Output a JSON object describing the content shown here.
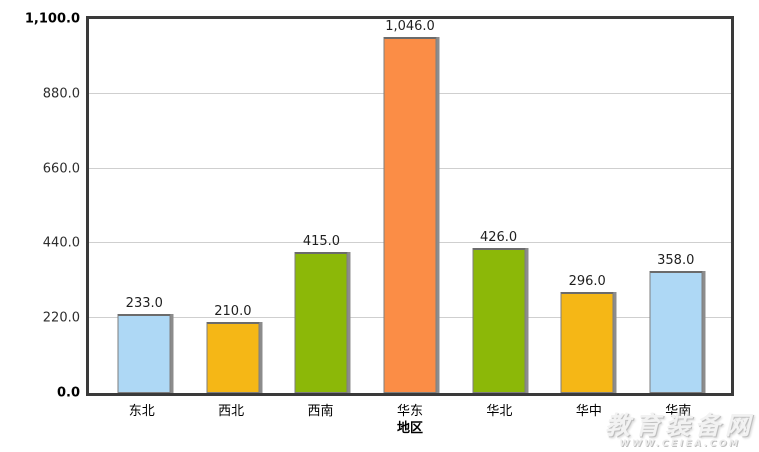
{
  "chart_data": {
    "type": "bar",
    "title": "",
    "xlabel": "地区",
    "ylabel": "",
    "categories": [
      "东北",
      "西北",
      "西南",
      "华东",
      "华北",
      "华中",
      "华南"
    ],
    "values": [
      233.0,
      210.0,
      415.0,
      1046.0,
      426.0,
      296.0,
      358.0
    ],
    "value_labels": [
      "233.0",
      "210.0",
      "415.0",
      "1,046.0",
      "426.0",
      "296.0",
      "358.0"
    ],
    "bar_colors": [
      "#AED8F5",
      "#F5B716",
      "#8CB808",
      "#FB8D46",
      "#8CB808",
      "#F5B716",
      "#AED8F5"
    ],
    "ylim": [
      0,
      1100
    ],
    "ytick_values": [
      0,
      220,
      440,
      660,
      880,
      1100
    ],
    "ytick_labels": [
      "0.0",
      "220.0",
      "440.0",
      "660.0",
      "880.0",
      "1,100.0"
    ],
    "grid": true,
    "legend_position": "none"
  },
  "colors": {
    "bar_blue": "#AED8F5",
    "bar_yellow": "#F5B716",
    "bar_green": "#8CB808",
    "bar_orange": "#FB8D46",
    "bar_border": "#7E7E7E",
    "bar_shadow": "#8C8C8C",
    "gridline": "#CFCFCF",
    "plot_border": "#3A3A3A",
    "background": "#FFFFFF"
  },
  "watermark": {
    "line1": "教育装备网",
    "line2": "WWW.CEIEA.COM"
  }
}
